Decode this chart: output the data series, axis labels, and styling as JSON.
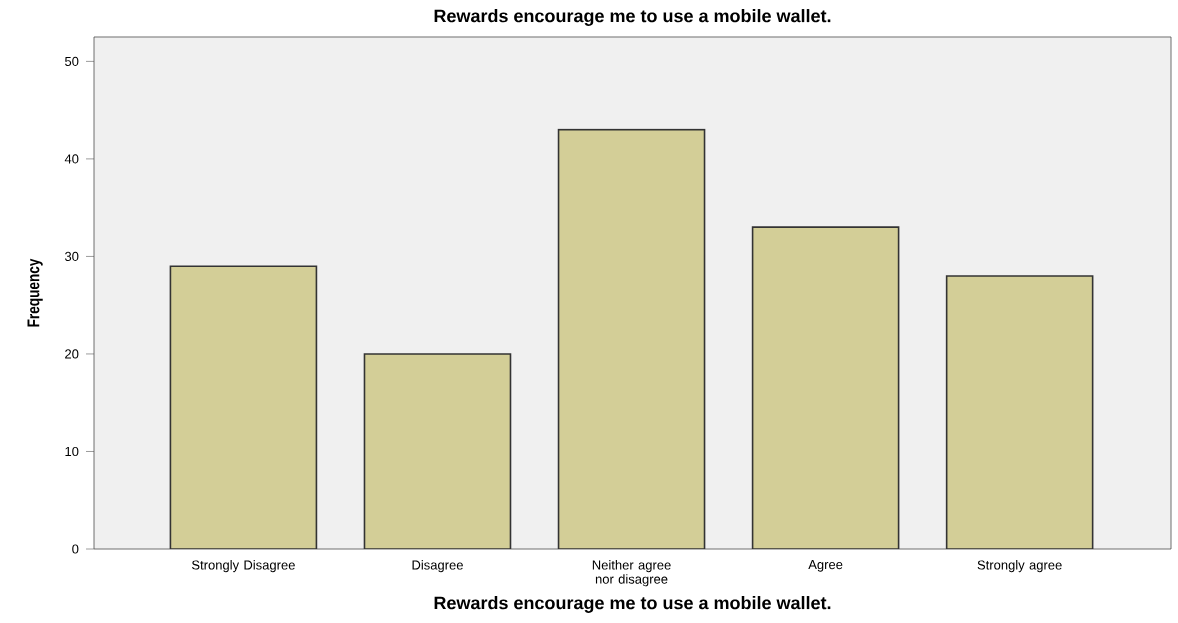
{
  "chart_data": {
    "type": "bar",
    "title": "Rewards encourage me to use a mobile wallet.",
    "xlabel": "Rewards encourage me to use a mobile wallet.",
    "ylabel": "Frequency",
    "categories": [
      "Strongly Disagree",
      "Disagree",
      "Neither agree nor disagree",
      "Agree",
      "Strongly agree"
    ],
    "values": [
      29,
      20,
      43,
      33,
      28
    ],
    "color": "#d3ce97",
    "ylim": [
      0,
      52.5
    ],
    "yticks": [
      0,
      10,
      20,
      30,
      40,
      50
    ],
    "grid": false
  }
}
